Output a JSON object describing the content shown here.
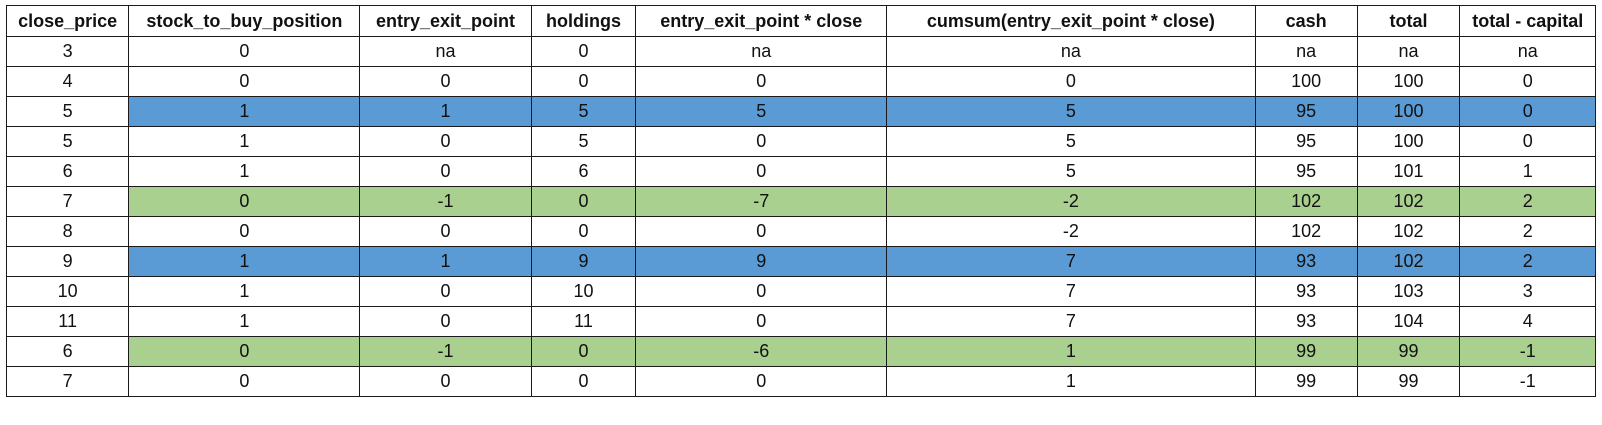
{
  "colors": {
    "entry": "#5b9bd5",
    "exit": "#a9d08e",
    "grid": "#1a1a1a",
    "background": "#ffffff"
  },
  "table": {
    "columns": [
      "close_price",
      "stock_to_buy_position",
      "entry_exit_point",
      "holdings",
      "entry_exit_point * close",
      "cumsum(entry_exit_point * close)",
      "cash",
      "total",
      "total - capital"
    ],
    "rows": [
      {
        "highlight": "none",
        "cells": [
          "3",
          "0",
          "na",
          "0",
          "na",
          "na",
          "na",
          "na",
          "na"
        ]
      },
      {
        "highlight": "none",
        "cells": [
          "4",
          "0",
          "0",
          "0",
          "0",
          "0",
          "100",
          "100",
          "0"
        ]
      },
      {
        "highlight": "entry",
        "cells": [
          "5",
          "1",
          "1",
          "5",
          "5",
          "5",
          "95",
          "100",
          "0"
        ]
      },
      {
        "highlight": "none",
        "cells": [
          "5",
          "1",
          "0",
          "5",
          "0",
          "5",
          "95",
          "100",
          "0"
        ]
      },
      {
        "highlight": "none",
        "cells": [
          "6",
          "1",
          "0",
          "6",
          "0",
          "5",
          "95",
          "101",
          "1"
        ]
      },
      {
        "highlight": "exit",
        "cells": [
          "7",
          "0",
          "-1",
          "0",
          "-7",
          "-2",
          "102",
          "102",
          "2"
        ]
      },
      {
        "highlight": "none",
        "cells": [
          "8",
          "0",
          "0",
          "0",
          "0",
          "-2",
          "102",
          "102",
          "2"
        ]
      },
      {
        "highlight": "entry",
        "cells": [
          "9",
          "1",
          "1",
          "9",
          "9",
          "7",
          "93",
          "102",
          "2"
        ]
      },
      {
        "highlight": "none",
        "cells": [
          "10",
          "1",
          "0",
          "10",
          "0",
          "7",
          "93",
          "103",
          "3"
        ]
      },
      {
        "highlight": "none",
        "cells": [
          "11",
          "1",
          "0",
          "11",
          "0",
          "7",
          "93",
          "104",
          "4"
        ]
      },
      {
        "highlight": "exit",
        "cells": [
          "6",
          "0",
          "-1",
          "0",
          "-6",
          "1",
          "99",
          "99",
          "-1"
        ]
      },
      {
        "highlight": "none",
        "cells": [
          "7",
          "0",
          "0",
          "0",
          "0",
          "1",
          "99",
          "99",
          "-1"
        ]
      }
    ]
  }
}
